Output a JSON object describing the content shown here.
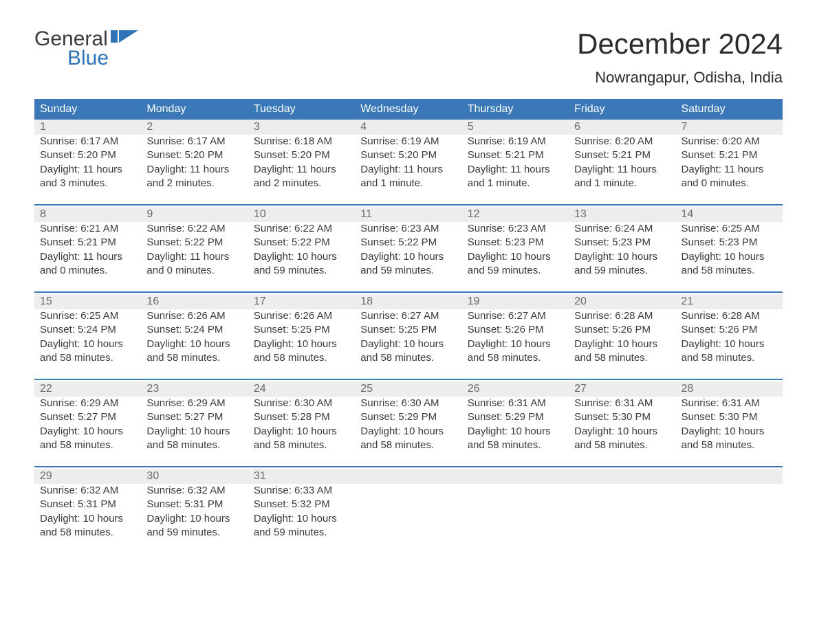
{
  "brand": {
    "word1": "General",
    "word2": "Blue",
    "accent_color": "#2f73b8"
  },
  "title": "December 2024",
  "location": "Nowrangapur, Odisha, India",
  "colors": {
    "header_bg": "#3a78b8",
    "header_text": "#ffffff",
    "daynum_bg": "#ededed",
    "daynum_text": "#6a6a6a",
    "body_text": "#3a3a3a",
    "rule": "#3a78b8"
  },
  "weekdays": [
    "Sunday",
    "Monday",
    "Tuesday",
    "Wednesday",
    "Thursday",
    "Friday",
    "Saturday"
  ],
  "weeks": [
    [
      {
        "n": "1",
        "sunrise": "Sunrise: 6:17 AM",
        "sunset": "Sunset: 5:20 PM",
        "dl1": "Daylight: 11 hours",
        "dl2": "and 3 minutes."
      },
      {
        "n": "2",
        "sunrise": "Sunrise: 6:17 AM",
        "sunset": "Sunset: 5:20 PM",
        "dl1": "Daylight: 11 hours",
        "dl2": "and 2 minutes."
      },
      {
        "n": "3",
        "sunrise": "Sunrise: 6:18 AM",
        "sunset": "Sunset: 5:20 PM",
        "dl1": "Daylight: 11 hours",
        "dl2": "and 2 minutes."
      },
      {
        "n": "4",
        "sunrise": "Sunrise: 6:19 AM",
        "sunset": "Sunset: 5:20 PM",
        "dl1": "Daylight: 11 hours",
        "dl2": "and 1 minute."
      },
      {
        "n": "5",
        "sunrise": "Sunrise: 6:19 AM",
        "sunset": "Sunset: 5:21 PM",
        "dl1": "Daylight: 11 hours",
        "dl2": "and 1 minute."
      },
      {
        "n": "6",
        "sunrise": "Sunrise: 6:20 AM",
        "sunset": "Sunset: 5:21 PM",
        "dl1": "Daylight: 11 hours",
        "dl2": "and 1 minute."
      },
      {
        "n": "7",
        "sunrise": "Sunrise: 6:20 AM",
        "sunset": "Sunset: 5:21 PM",
        "dl1": "Daylight: 11 hours",
        "dl2": "and 0 minutes."
      }
    ],
    [
      {
        "n": "8",
        "sunrise": "Sunrise: 6:21 AM",
        "sunset": "Sunset: 5:21 PM",
        "dl1": "Daylight: 11 hours",
        "dl2": "and 0 minutes."
      },
      {
        "n": "9",
        "sunrise": "Sunrise: 6:22 AM",
        "sunset": "Sunset: 5:22 PM",
        "dl1": "Daylight: 11 hours",
        "dl2": "and 0 minutes."
      },
      {
        "n": "10",
        "sunrise": "Sunrise: 6:22 AM",
        "sunset": "Sunset: 5:22 PM",
        "dl1": "Daylight: 10 hours",
        "dl2": "and 59 minutes."
      },
      {
        "n": "11",
        "sunrise": "Sunrise: 6:23 AM",
        "sunset": "Sunset: 5:22 PM",
        "dl1": "Daylight: 10 hours",
        "dl2": "and 59 minutes."
      },
      {
        "n": "12",
        "sunrise": "Sunrise: 6:23 AM",
        "sunset": "Sunset: 5:23 PM",
        "dl1": "Daylight: 10 hours",
        "dl2": "and 59 minutes."
      },
      {
        "n": "13",
        "sunrise": "Sunrise: 6:24 AM",
        "sunset": "Sunset: 5:23 PM",
        "dl1": "Daylight: 10 hours",
        "dl2": "and 59 minutes."
      },
      {
        "n": "14",
        "sunrise": "Sunrise: 6:25 AM",
        "sunset": "Sunset: 5:23 PM",
        "dl1": "Daylight: 10 hours",
        "dl2": "and 58 minutes."
      }
    ],
    [
      {
        "n": "15",
        "sunrise": "Sunrise: 6:25 AM",
        "sunset": "Sunset: 5:24 PM",
        "dl1": "Daylight: 10 hours",
        "dl2": "and 58 minutes."
      },
      {
        "n": "16",
        "sunrise": "Sunrise: 6:26 AM",
        "sunset": "Sunset: 5:24 PM",
        "dl1": "Daylight: 10 hours",
        "dl2": "and 58 minutes."
      },
      {
        "n": "17",
        "sunrise": "Sunrise: 6:26 AM",
        "sunset": "Sunset: 5:25 PM",
        "dl1": "Daylight: 10 hours",
        "dl2": "and 58 minutes."
      },
      {
        "n": "18",
        "sunrise": "Sunrise: 6:27 AM",
        "sunset": "Sunset: 5:25 PM",
        "dl1": "Daylight: 10 hours",
        "dl2": "and 58 minutes."
      },
      {
        "n": "19",
        "sunrise": "Sunrise: 6:27 AM",
        "sunset": "Sunset: 5:26 PM",
        "dl1": "Daylight: 10 hours",
        "dl2": "and 58 minutes."
      },
      {
        "n": "20",
        "sunrise": "Sunrise: 6:28 AM",
        "sunset": "Sunset: 5:26 PM",
        "dl1": "Daylight: 10 hours",
        "dl2": "and 58 minutes."
      },
      {
        "n": "21",
        "sunrise": "Sunrise: 6:28 AM",
        "sunset": "Sunset: 5:26 PM",
        "dl1": "Daylight: 10 hours",
        "dl2": "and 58 minutes."
      }
    ],
    [
      {
        "n": "22",
        "sunrise": "Sunrise: 6:29 AM",
        "sunset": "Sunset: 5:27 PM",
        "dl1": "Daylight: 10 hours",
        "dl2": "and 58 minutes."
      },
      {
        "n": "23",
        "sunrise": "Sunrise: 6:29 AM",
        "sunset": "Sunset: 5:27 PM",
        "dl1": "Daylight: 10 hours",
        "dl2": "and 58 minutes."
      },
      {
        "n": "24",
        "sunrise": "Sunrise: 6:30 AM",
        "sunset": "Sunset: 5:28 PM",
        "dl1": "Daylight: 10 hours",
        "dl2": "and 58 minutes."
      },
      {
        "n": "25",
        "sunrise": "Sunrise: 6:30 AM",
        "sunset": "Sunset: 5:29 PM",
        "dl1": "Daylight: 10 hours",
        "dl2": "and 58 minutes."
      },
      {
        "n": "26",
        "sunrise": "Sunrise: 6:31 AM",
        "sunset": "Sunset: 5:29 PM",
        "dl1": "Daylight: 10 hours",
        "dl2": "and 58 minutes."
      },
      {
        "n": "27",
        "sunrise": "Sunrise: 6:31 AM",
        "sunset": "Sunset: 5:30 PM",
        "dl1": "Daylight: 10 hours",
        "dl2": "and 58 minutes."
      },
      {
        "n": "28",
        "sunrise": "Sunrise: 6:31 AM",
        "sunset": "Sunset: 5:30 PM",
        "dl1": "Daylight: 10 hours",
        "dl2": "and 58 minutes."
      }
    ],
    [
      {
        "n": "29",
        "sunrise": "Sunrise: 6:32 AM",
        "sunset": "Sunset: 5:31 PM",
        "dl1": "Daylight: 10 hours",
        "dl2": "and 58 minutes."
      },
      {
        "n": "30",
        "sunrise": "Sunrise: 6:32 AM",
        "sunset": "Sunset: 5:31 PM",
        "dl1": "Daylight: 10 hours",
        "dl2": "and 59 minutes."
      },
      {
        "n": "31",
        "sunrise": "Sunrise: 6:33 AM",
        "sunset": "Sunset: 5:32 PM",
        "dl1": "Daylight: 10 hours",
        "dl2": "and 59 minutes."
      },
      null,
      null,
      null,
      null
    ]
  ]
}
